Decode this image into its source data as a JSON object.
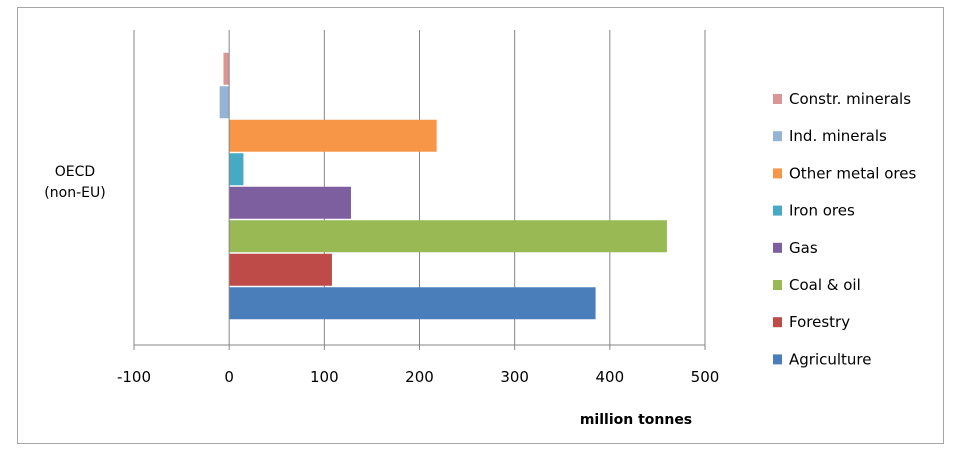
{
  "chart_data": {
    "type": "bar",
    "orientation": "horizontal",
    "title": "",
    "categories": [
      "OECD\n(non-EU)"
    ],
    "xlabel": "million tonnes",
    "ylabel": "",
    "xlim": [
      -100,
      500
    ],
    "xticks": [
      -100,
      0,
      100,
      200,
      300,
      400,
      500
    ],
    "grid": true,
    "legend_position": "right",
    "series": [
      {
        "name": "Agriculture",
        "values": [
          385
        ],
        "color": "#4a7ebb"
      },
      {
        "name": "Forestry",
        "values": [
          108
        ],
        "color": "#be4b48"
      },
      {
        "name": "Coal & oil",
        "values": [
          460
        ],
        "color": "#98b954"
      },
      {
        "name": "Gas",
        "values": [
          128
        ],
        "color": "#7d5f9f"
      },
      {
        "name": "Iron ores",
        "values": [
          15
        ],
        "color": "#46aac5"
      },
      {
        "name": "Other metal ores",
        "values": [
          218
        ],
        "color": "#f79646"
      },
      {
        "name": "Ind. minerals",
        "values": [
          -10
        ],
        "color": "#95b3d7"
      },
      {
        "name": "Constr. minerals",
        "values": [
          -6
        ],
        "color": "#d99694"
      }
    ]
  }
}
